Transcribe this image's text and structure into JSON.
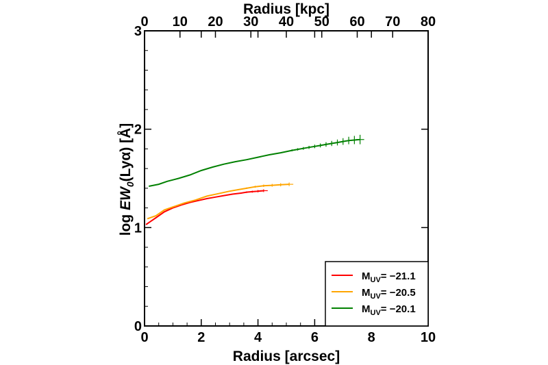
{
  "chart_data": {
    "type": "line",
    "xlabel": "Radius [arcsec]",
    "x2label": "Radius [kpc]",
    "ylabel_prefix": "log ",
    "ylabel_ew": "EW",
    "ylabel_sub": "0",
    "ylabel_suffix": "(Lyα) [Å]",
    "xlim": [
      0,
      10
    ],
    "x2lim": [
      0,
      80
    ],
    "ylim": [
      0,
      3
    ],
    "xticks": [
      0,
      2,
      4,
      6,
      8,
      10
    ],
    "x2ticks": [
      0,
      10,
      20,
      30,
      40,
      50,
      60,
      70,
      80
    ],
    "yticks": [
      0,
      1,
      2,
      3
    ],
    "xtick_labels": [
      "0",
      "2",
      "4",
      "6",
      "8",
      "10"
    ],
    "x2tick_labels": [
      "0",
      "10",
      "20",
      "30",
      "40",
      "50",
      "60",
      "70",
      "80"
    ],
    "ytick_labels": [
      "0",
      "1",
      "2",
      "3"
    ],
    "legend_position": "bottom-right",
    "grid": false,
    "series": [
      {
        "name_main": "M",
        "name_sub": "UV",
        "name_value": "= −21.1",
        "color": "#ff0000",
        "x": [
          0.05,
          0.2,
          0.4,
          0.7,
          1.0,
          1.3,
          1.6,
          1.9,
          2.2,
          2.5,
          2.8,
          3.1,
          3.4,
          3.6,
          3.8,
          4.0,
          4.2
        ],
        "y": [
          1.03,
          1.06,
          1.1,
          1.16,
          1.2,
          1.23,
          1.255,
          1.275,
          1.295,
          1.31,
          1.325,
          1.34,
          1.35,
          1.36,
          1.365,
          1.37,
          1.375
        ],
        "err": [
          0,
          0,
          0,
          0,
          0,
          0,
          0,
          0,
          0,
          0,
          0,
          0.005,
          0.007,
          0.008,
          0.01,
          0.012,
          0.014
        ]
      },
      {
        "name_main": "M",
        "name_sub": "UV",
        "name_value": "= −20.5",
        "color": "#ffa500",
        "x": [
          0.1,
          0.4,
          0.7,
          1.0,
          1.4,
          1.8,
          2.2,
          2.6,
          3.0,
          3.3,
          3.6,
          3.9,
          4.2,
          4.5,
          4.8,
          5.1
        ],
        "y": [
          1.09,
          1.12,
          1.18,
          1.21,
          1.25,
          1.28,
          1.32,
          1.345,
          1.37,
          1.385,
          1.4,
          1.415,
          1.425,
          1.43,
          1.435,
          1.44
        ],
        "err": [
          0,
          0,
          0,
          0,
          0,
          0,
          0,
          0,
          0,
          0.006,
          0.008,
          0.01,
          0.012,
          0.014,
          0.016,
          0.018
        ]
      },
      {
        "name_main": "M",
        "name_sub": "UV",
        "name_value": "= −20.1",
        "color": "#008000",
        "x": [
          0.15,
          0.5,
          0.8,
          1.2,
          1.6,
          2.0,
          2.4,
          2.8,
          3.2,
          3.6,
          4.0,
          4.4,
          4.8,
          5.2,
          5.4,
          5.6,
          5.8,
          6.0,
          6.2,
          6.4,
          6.6,
          6.8,
          7.0,
          7.2,
          7.4,
          7.6
        ],
        "y": [
          1.42,
          1.44,
          1.47,
          1.5,
          1.535,
          1.58,
          1.615,
          1.645,
          1.67,
          1.69,
          1.715,
          1.74,
          1.76,
          1.785,
          1.795,
          1.805,
          1.815,
          1.825,
          1.835,
          1.845,
          1.855,
          1.865,
          1.875,
          1.885,
          1.89,
          1.895
        ],
        "err": [
          0,
          0,
          0,
          0,
          0,
          0,
          0,
          0,
          0,
          0,
          0,
          0,
          0,
          0.01,
          0.012,
          0.014,
          0.016,
          0.018,
          0.02,
          0.023,
          0.026,
          0.03,
          0.034,
          0.038,
          0.042,
          0.048
        ]
      }
    ]
  }
}
